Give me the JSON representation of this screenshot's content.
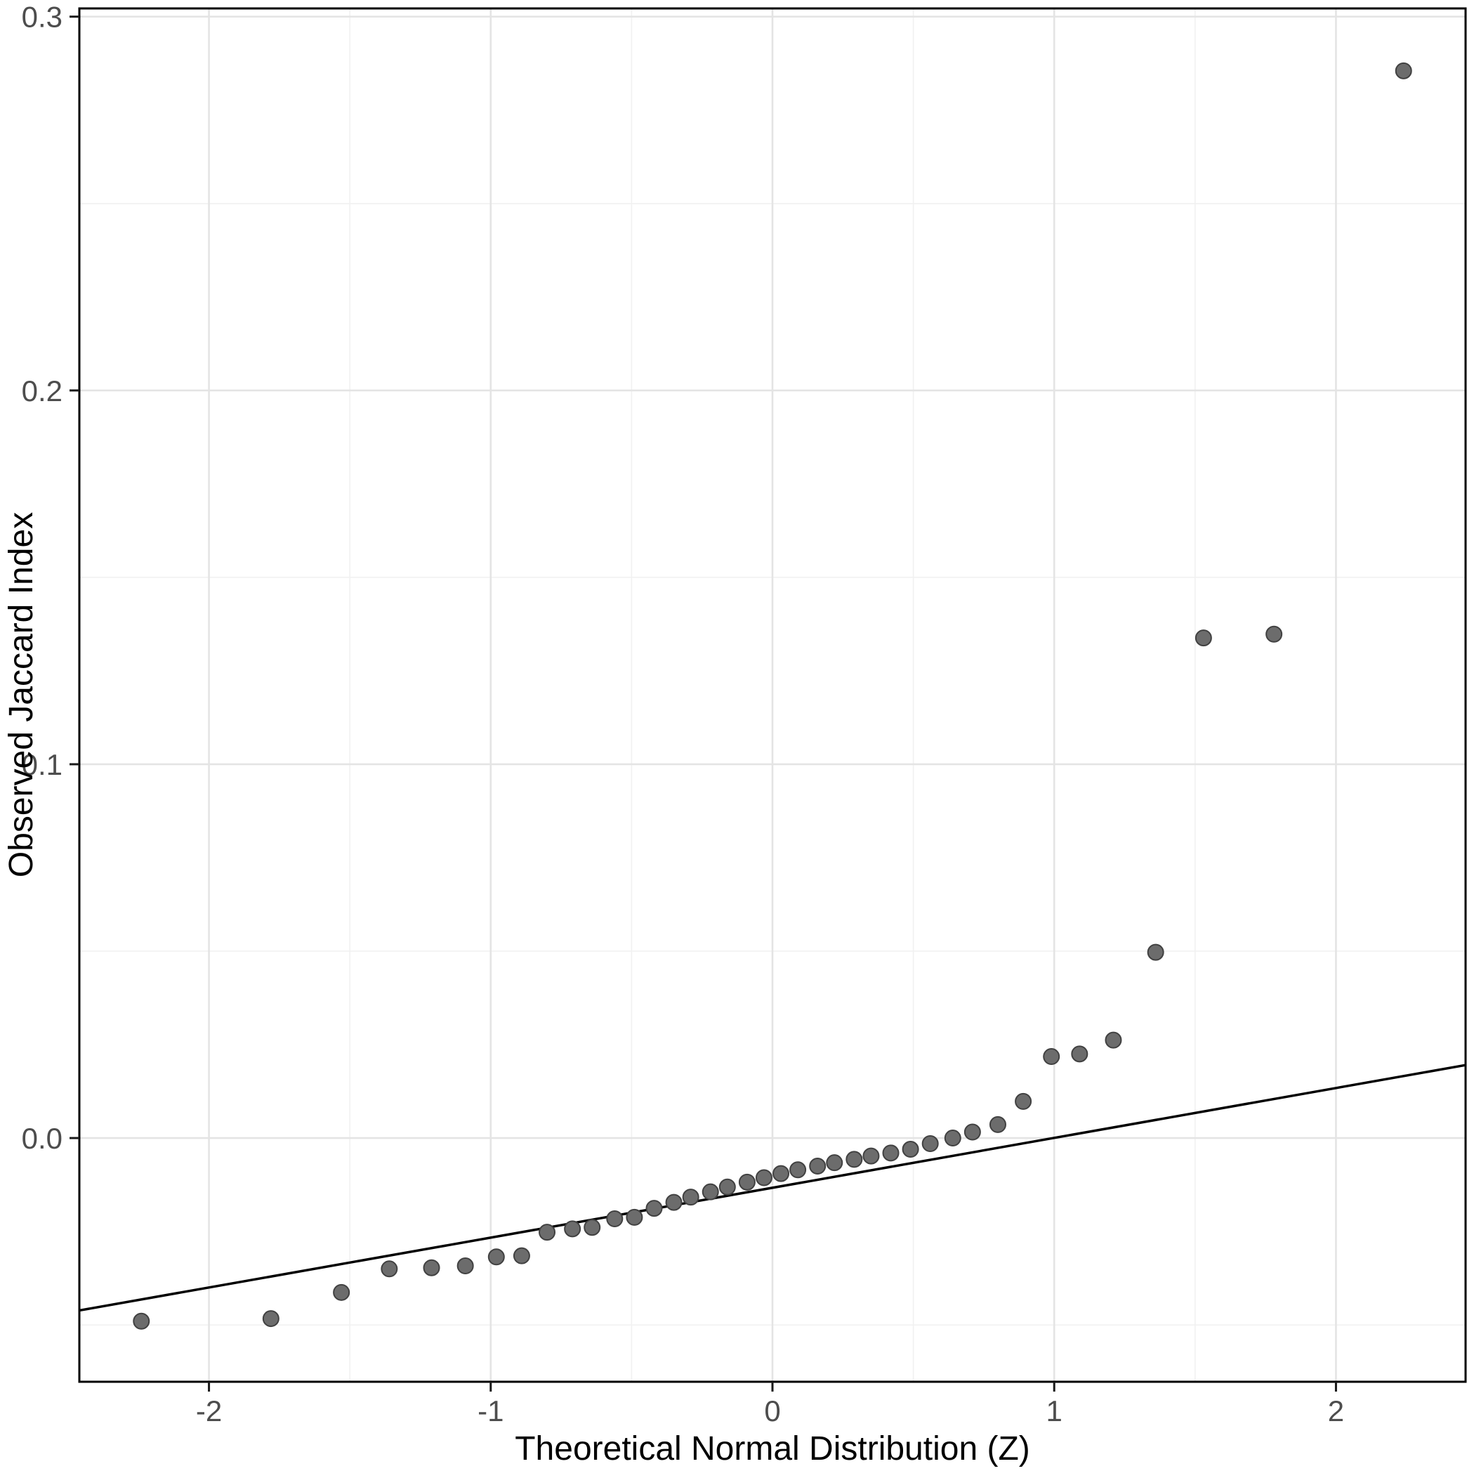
{
  "chart_data": {
    "type": "scatter",
    "title": "",
    "xlabel": "Theoretical Normal Distribution (Z)",
    "ylabel": "Observed Jaccard Index",
    "xlim": [
      -2.46,
      2.46
    ],
    "ylim": [
      -0.0652,
      0.3022
    ],
    "x_ticks": [
      -2,
      -1,
      0,
      1,
      2
    ],
    "x_tick_labels": [
      "-2",
      "-1",
      "0",
      "1",
      "2"
    ],
    "x_minor_gridlines": [
      -1.5,
      -0.5,
      0.5,
      1.5
    ],
    "y_ticks": [
      0,
      0.1,
      0.2,
      0.3
    ],
    "y_tick_labels": [
      "0.0",
      "0.1",
      "0.2",
      "0.3"
    ],
    "y_minor_gridlines": [
      -0.05,
      0.05,
      0.15,
      0.25
    ],
    "grid": "major+minor",
    "legend": "none",
    "reference_line": {
      "slope": 0.01334,
      "intercept": -0.0133
    },
    "points": [
      [
        -2.24,
        -0.049
      ],
      [
        -1.78,
        -0.0483
      ],
      [
        -1.53,
        -0.0413
      ],
      [
        -1.36,
        -0.035
      ],
      [
        -1.21,
        -0.0347
      ],
      [
        -1.09,
        -0.0342
      ],
      [
        -0.98,
        -0.0318
      ],
      [
        -0.89,
        -0.0315
      ],
      [
        -0.8,
        -0.0252
      ],
      [
        -0.71,
        -0.0243
      ],
      [
        -0.64,
        -0.0239
      ],
      [
        -0.56,
        -0.0216
      ],
      [
        -0.49,
        -0.0212
      ],
      [
        -0.42,
        -0.0188
      ],
      [
        -0.35,
        -0.0172
      ],
      [
        -0.29,
        -0.0158
      ],
      [
        -0.22,
        -0.0144
      ],
      [
        -0.16,
        -0.0131
      ],
      [
        -0.09,
        -0.0118
      ],
      [
        -0.03,
        -0.0106
      ],
      [
        0.03,
        -0.0095
      ],
      [
        0.09,
        -0.0085
      ],
      [
        0.16,
        -0.0075
      ],
      [
        0.22,
        -0.0066
      ],
      [
        0.29,
        -0.0057
      ],
      [
        0.35,
        -0.0048
      ],
      [
        0.42,
        -0.004
      ],
      [
        0.49,
        -0.003
      ],
      [
        0.56,
        -0.0015
      ],
      [
        0.64,
        0.0
      ],
      [
        0.71,
        0.0016
      ],
      [
        0.8,
        0.0036
      ],
      [
        0.89,
        0.0098
      ],
      [
        0.99,
        0.0218
      ],
      [
        1.09,
        0.0225
      ],
      [
        1.21,
        0.0262
      ],
      [
        1.36,
        0.0497
      ],
      [
        1.53,
        0.1338
      ],
      [
        1.78,
        0.1348
      ],
      [
        2.24,
        0.2855
      ]
    ]
  },
  "style": {
    "background": "#ffffff",
    "panel_background": "#ffffff",
    "grid_major_color": "#e4e4e4",
    "grid_minor_color": "#f1f1f1",
    "panel_border_color": "#000000",
    "reference_line_color": "#000000",
    "point_fill": "#6c6c6c",
    "point_stroke": "#414141",
    "tick_mark_color": "#1a1a1a",
    "tick_label_color": "#4d4d4d",
    "axis_title_color": "#000000"
  }
}
